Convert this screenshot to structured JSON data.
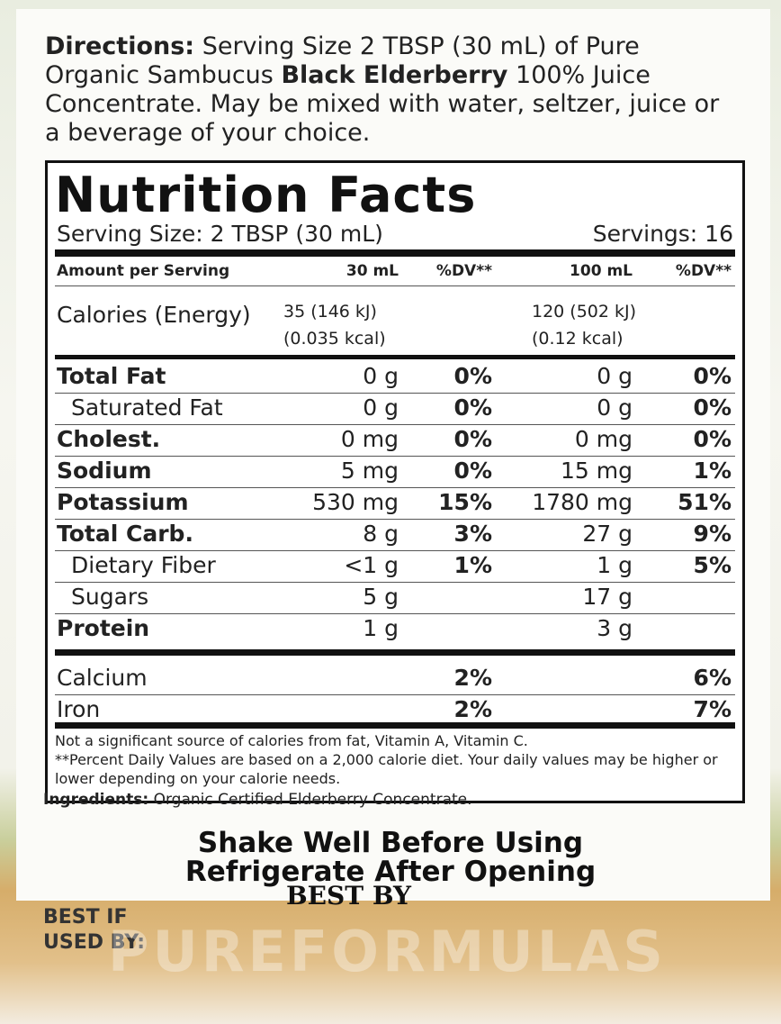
{
  "directions": {
    "label": "Directions:",
    "text_before": "Serving Size 2 TBSP (30 mL) of Pure Organic Sambucus",
    "text_bold": "Black Elderberry",
    "text_after": "100% Juice Concentrate. May be mixed with water, seltzer, juice or a beverage of your choice."
  },
  "nutrition": {
    "title": "Nutrition Facts",
    "serving_size": "Serving Size: 2 TBSP (30 mL)",
    "servings": "Servings: 16",
    "header": [
      "Amount per Serving",
      "30 mL",
      "%DV**",
      "100 mL",
      "%DV**"
    ],
    "calories": {
      "label": "Calories (Energy)",
      "amount_30": [
        "35 (146 kJ)",
        "(0.035 kcal)"
      ],
      "amount_100": [
        "120 (502 kJ)",
        "(0.12 kcal)"
      ]
    },
    "rows": [
      {
        "label": "Total Fat",
        "bold": true,
        "amount_30": "0 g",
        "dv_30": "0%",
        "amount_100": "0 g",
        "dv_100": "0%"
      },
      {
        "label": "Saturated Fat",
        "indent": true,
        "amount_30": "0 g",
        "dv_30": "0%",
        "amount_100": "0 g",
        "dv_100": "0%"
      },
      {
        "label": "Cholest.",
        "bold": true,
        "amount_30": "0 mg",
        "dv_30": "0%",
        "amount_100": "0 mg",
        "dv_100": "0%"
      },
      {
        "label": "Sodium",
        "bold": true,
        "amount_30": "5 mg",
        "dv_30": "0%",
        "amount_100": "15 mg",
        "dv_100": "1%"
      },
      {
        "label": "Potassium",
        "bold": true,
        "amount_30": "530 mg",
        "dv_30": "15%",
        "amount_100": "1780 mg",
        "dv_100": "51%"
      },
      {
        "label": "Total Carb.",
        "bold": true,
        "amount_30": "8 g",
        "dv_30": "3%",
        "amount_100": "27 g",
        "dv_100": "9%"
      },
      {
        "label": "Dietary Fiber",
        "indent": true,
        "amount_30": "<1 g",
        "dv_30": "1%",
        "amount_100": "1 g",
        "dv_100": "5%"
      },
      {
        "label": "Sugars",
        "indent": true,
        "amount_30": "5 g",
        "amount_100": "17 g"
      },
      {
        "label": "Protein",
        "bold": true,
        "amount_30": "1 g",
        "amount_100": "3 g"
      }
    ],
    "vitamins": [
      {
        "label": "Calcium",
        "dv_30": "2%",
        "dv_100": "6%"
      },
      {
        "label": "Iron",
        "dv_30": "2%",
        "dv_100": "7%"
      }
    ],
    "footnotes": [
      "Not a significant source of calories from fat, Vitamin A, Vitamin C.",
      "**Percent Daily Values are based on a 2,000 calorie diet. Your daily values may be higher or lower depending on your calorie needs."
    ]
  },
  "ingredients": {
    "label": "Ingredients:",
    "text": "Organic Certified Elderberry Concentrate."
  },
  "instructions": [
    "Shake Well Before Using",
    "Refrigerate After Opening"
  ],
  "stamp": "BEST BY",
  "best_if_used_by": [
    "BEST IF",
    "USED BY:"
  ],
  "watermark": "PUREFORMULAS"
}
